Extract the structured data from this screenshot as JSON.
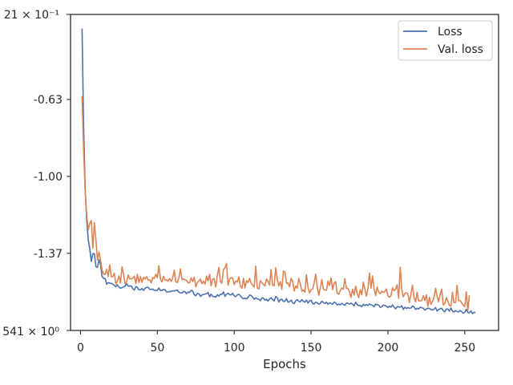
{
  "chart_data": {
    "type": "line",
    "title": "",
    "xlabel": "Epochs",
    "ylabel": "",
    "xlim": [
      -6.5,
      272
    ],
    "ylim": [
      -1.741,
      -0.221
    ],
    "xticks": [
      0,
      50,
      100,
      150,
      200,
      250
    ],
    "xtick_labels": [
      "0",
      "50",
      "100",
      "150",
      "200",
      "250"
    ],
    "yticks": [
      -0.63,
      -1.0,
      -1.37
    ],
    "ytick_labels": [
      "-0.63",
      "-1.00",
      "-1.37"
    ],
    "y_edge_labels": {
      "top": "21 × 10⁻¹",
      "bottom": "541 × 10⁰"
    },
    "grid": false,
    "legend_position": "top-right",
    "x_start": 1,
    "x_step": 1,
    "series": [
      {
        "name": "Loss",
        "color": "#4c72b0",
        "values": [
          -0.289,
          -0.753,
          -1.059,
          -1.207,
          -1.303,
          -1.346,
          -1.409,
          -1.372,
          -1.372,
          -1.434,
          -1.438,
          -1.401,
          -1.424,
          -1.48,
          -1.491,
          -1.491,
          -1.519,
          -1.511,
          -1.513,
          -1.514,
          -1.518,
          -1.524,
          -1.531,
          -1.521,
          -1.531,
          -1.538,
          -1.535,
          -1.532,
          -1.527,
          -1.516,
          -1.528,
          -1.527,
          -1.527,
          -1.54,
          -1.547,
          -1.53,
          -1.534,
          -1.545,
          -1.546,
          -1.539,
          -1.548,
          -1.538,
          -1.534,
          -1.534,
          -1.543,
          -1.544,
          -1.542,
          -1.548,
          -1.549,
          -1.548,
          -1.537,
          -1.549,
          -1.549,
          -1.544,
          -1.545,
          -1.556,
          -1.555,
          -1.554,
          -1.553,
          -1.55,
          -1.551,
          -1.548,
          -1.547,
          -1.557,
          -1.561,
          -1.561,
          -1.553,
          -1.555,
          -1.564,
          -1.556,
          -1.558,
          -1.548,
          -1.552,
          -1.568,
          -1.574,
          -1.563,
          -1.564,
          -1.577,
          -1.571,
          -1.568,
          -1.566,
          -1.564,
          -1.559,
          -1.579,
          -1.566,
          -1.578,
          -1.577,
          -1.581,
          -1.569,
          -1.576,
          -1.567,
          -1.567,
          -1.556,
          -1.577,
          -1.567,
          -1.562,
          -1.569,
          -1.57,
          -1.562,
          -1.575,
          -1.578,
          -1.57,
          -1.567,
          -1.574,
          -1.583,
          -1.589,
          -1.585,
          -1.59,
          -1.582,
          -1.571,
          -1.573,
          -1.58,
          -1.591,
          -1.584,
          -1.589,
          -1.59,
          -1.598,
          -1.584,
          -1.586,
          -1.595,
          -1.591,
          -1.6,
          -1.59,
          -1.584,
          -1.592,
          -1.599,
          -1.578,
          -1.583,
          -1.604,
          -1.593,
          -1.591,
          -1.602,
          -1.6,
          -1.588,
          -1.605,
          -1.602,
          -1.595,
          -1.608,
          -1.612,
          -1.598,
          -1.593,
          -1.601,
          -1.603,
          -1.593,
          -1.601,
          -1.605,
          -1.595,
          -1.609,
          -1.599,
          -1.596,
          -1.611,
          -1.614,
          -1.605,
          -1.607,
          -1.615,
          -1.611,
          -1.6,
          -1.607,
          -1.611,
          -1.605,
          -1.615,
          -1.608,
          -1.611,
          -1.615,
          -1.604,
          -1.609,
          -1.618,
          -1.614,
          -1.618,
          -1.61,
          -1.616,
          -1.62,
          -1.609,
          -1.61,
          -1.614,
          -1.61,
          -1.614,
          -1.623,
          -1.605,
          -1.616,
          -1.622,
          -1.62,
          -1.627,
          -1.615,
          -1.622,
          -1.616,
          -1.621,
          -1.613,
          -1.618,
          -1.62,
          -1.627,
          -1.614,
          -1.618,
          -1.619,
          -1.63,
          -1.627,
          -1.619,
          -1.62,
          -1.625,
          -1.631,
          -1.624,
          -1.629,
          -1.618,
          -1.629,
          -1.637,
          -1.627,
          -1.628,
          -1.629,
          -1.622,
          -1.64,
          -1.629,
          -1.635,
          -1.631,
          -1.634,
          -1.633,
          -1.623,
          -1.628,
          -1.64,
          -1.634,
          -1.638,
          -1.629,
          -1.632,
          -1.634,
          -1.643,
          -1.638,
          -1.634,
          -1.635,
          -1.641,
          -1.643,
          -1.639,
          -1.631,
          -1.648,
          -1.64,
          -1.637,
          -1.634,
          -1.645,
          -1.652,
          -1.638,
          -1.639,
          -1.648,
          -1.633,
          -1.648,
          -1.652,
          -1.646,
          -1.65,
          -1.652,
          -1.645,
          -1.651,
          -1.658,
          -1.653,
          -1.64,
          -1.654,
          -1.656,
          -1.647,
          -1.66,
          -1.654,
          -1.655
        ]
      },
      {
        "name": "Val. loss",
        "color": "#dd8452",
        "values": [
          -0.613,
          -0.872,
          -1.064,
          -1.181,
          -1.257,
          -1.226,
          -1.212,
          -1.346,
          -1.223,
          -1.304,
          -1.402,
          -1.363,
          -1.404,
          -1.449,
          -1.469,
          -1.472,
          -1.447,
          -1.482,
          -1.426,
          -1.483,
          -1.482,
          -1.465,
          -1.519,
          -1.503,
          -1.478,
          -1.513,
          -1.435,
          -1.47,
          -1.517,
          -1.507,
          -1.474,
          -1.492,
          -1.493,
          -1.49,
          -1.48,
          -1.515,
          -1.471,
          -1.51,
          -1.482,
          -1.509,
          -1.485,
          -1.494,
          -1.482,
          -1.499,
          -1.497,
          -1.512,
          -1.486,
          -1.491,
          -1.471,
          -1.487,
          -1.43,
          -1.494,
          -1.508,
          -1.481,
          -1.499,
          -1.498,
          -1.503,
          -1.491,
          -1.505,
          -1.488,
          -1.451,
          -1.508,
          -1.51,
          -1.488,
          -1.444,
          -1.498,
          -1.492,
          -1.497,
          -1.5,
          -1.512,
          -1.512,
          -1.488,
          -1.506,
          -1.484,
          -1.531,
          -1.51,
          -1.502,
          -1.494,
          -1.516,
          -1.504,
          -1.518,
          -1.48,
          -1.503,
          -1.471,
          -1.526,
          -1.494,
          -1.492,
          -1.532,
          -1.477,
          -1.438,
          -1.505,
          -1.513,
          -1.448,
          -1.44,
          -1.418,
          -1.524,
          -1.493,
          -1.486,
          -1.491,
          -1.521,
          -1.503,
          -1.508,
          -1.484,
          -1.528,
          -1.538,
          -1.49,
          -1.536,
          -1.501,
          -1.511,
          -1.49,
          -1.513,
          -1.524,
          -1.532,
          -1.432,
          -1.536,
          -1.542,
          -1.501,
          -1.512,
          -1.52,
          -1.527,
          -1.493,
          -1.505,
          -1.523,
          -1.448,
          -1.523,
          -1.526,
          -1.44,
          -1.496,
          -1.527,
          -1.506,
          -1.543,
          -1.456,
          -1.459,
          -1.515,
          -1.512,
          -1.532,
          -1.49,
          -1.504,
          -1.551,
          -1.527,
          -1.538,
          -1.491,
          -1.516,
          -1.552,
          -1.546,
          -1.557,
          -1.472,
          -1.536,
          -1.561,
          -1.545,
          -1.541,
          -1.515,
          -1.47,
          -1.53,
          -1.572,
          -1.538,
          -1.496,
          -1.543,
          -1.546,
          -1.548,
          -1.504,
          -1.525,
          -1.489,
          -1.545,
          -1.513,
          -1.506,
          -1.562,
          -1.567,
          -1.549,
          -1.537,
          -1.543,
          -1.492,
          -1.538,
          -1.54,
          -1.554,
          -1.582,
          -1.543,
          -1.571,
          -1.528,
          -1.563,
          -1.583,
          -1.545,
          -1.57,
          -1.509,
          -1.541,
          -1.576,
          -1.54,
          -1.465,
          -1.538,
          -1.479,
          -1.541,
          -1.573,
          -1.532,
          -1.556,
          -1.565,
          -1.552,
          -1.558,
          -1.554,
          -1.541,
          -1.573,
          -1.582,
          -1.573,
          -1.536,
          -1.55,
          -1.542,
          -1.521,
          -1.587,
          -1.437,
          -1.544,
          -1.579,
          -1.564,
          -1.559,
          -1.565,
          -1.606,
          -1.565,
          -1.523,
          -1.582,
          -1.604,
          -1.557,
          -1.599,
          -1.599,
          -1.597,
          -1.574,
          -1.597,
          -1.57,
          -1.625,
          -1.582,
          -1.615,
          -1.6,
          -1.583,
          -1.538,
          -1.576,
          -1.603,
          -1.567,
          -1.542,
          -1.618,
          -1.612,
          -1.583,
          -1.599,
          -1.62,
          -1.624,
          -1.557,
          -1.607,
          -1.607,
          -1.524,
          -1.597,
          -1.598,
          -1.608,
          -1.62,
          -1.626,
          -1.555,
          -1.646,
          -1.571
        ]
      }
    ]
  }
}
